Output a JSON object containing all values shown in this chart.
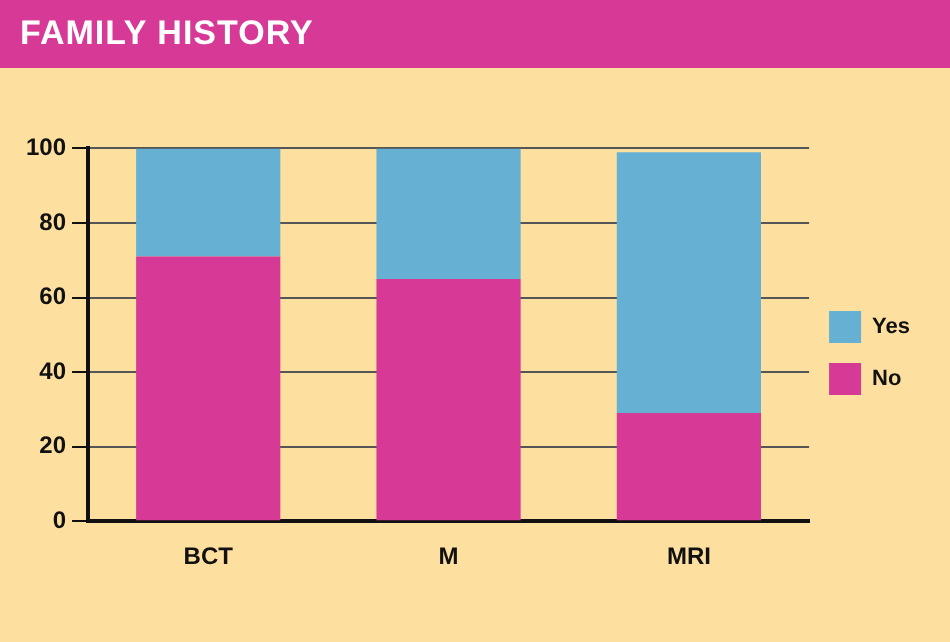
{
  "chart_data": {
    "type": "bar",
    "title": "FAMILY HISTORY",
    "categories": [
      "BCT",
      "M",
      "MRI"
    ],
    "stacked": true,
    "series": [
      {
        "name": "No",
        "color": "#d63a96",
        "values": [
          71,
          65,
          29
        ]
      },
      {
        "name": "Yes",
        "color": "#66b0d4",
        "values": [
          29,
          35,
          70
        ]
      }
    ],
    "ylim": [
      0,
      100
    ],
    "yticks": [
      0,
      20,
      40,
      60,
      80,
      100
    ],
    "grid": "y",
    "legend": "right"
  }
}
